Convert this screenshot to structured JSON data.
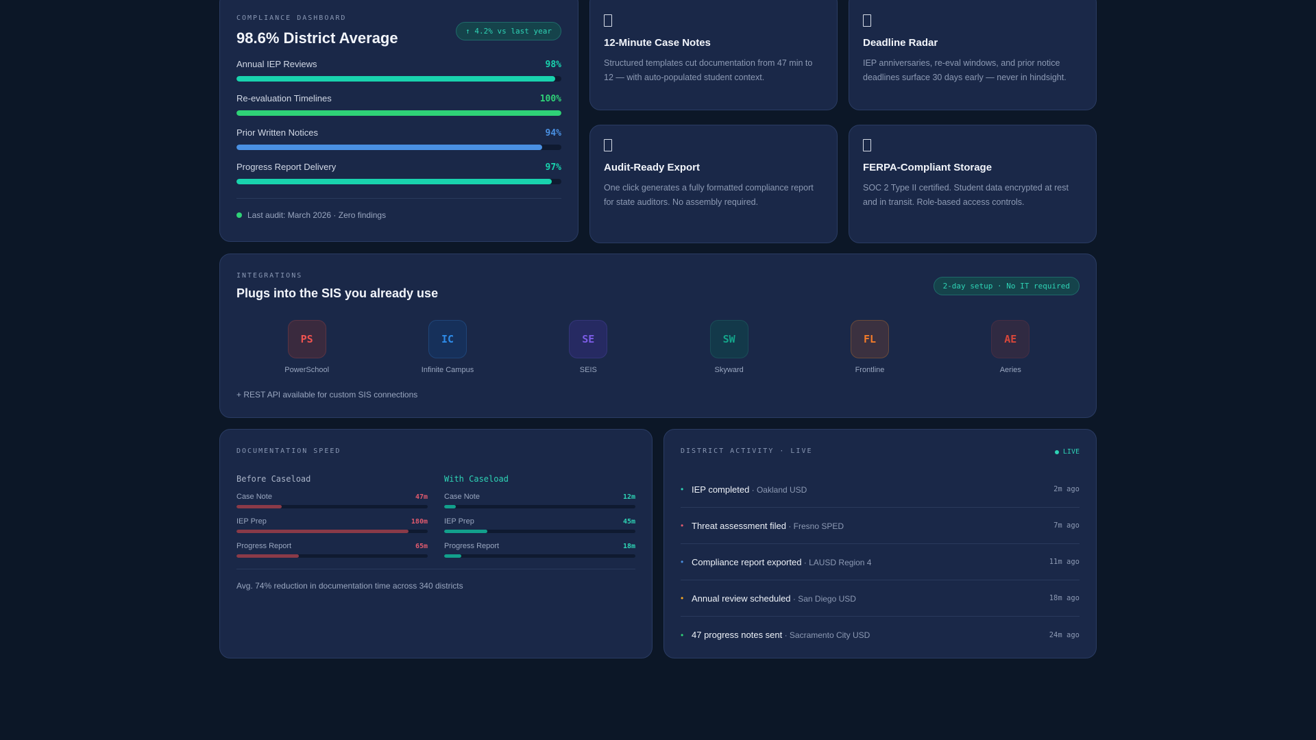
{
  "compliance": {
    "eyebrow": "COMPLIANCE DASHBOARD",
    "title": "98.6% District Average",
    "badge": "↑ 4.2% vs last year",
    "metrics": [
      {
        "label": "Annual IEP Reviews",
        "value": "98%",
        "percent": 98,
        "color": "#19d3ae"
      },
      {
        "label": "Re-evaluation Timelines",
        "value": "100%",
        "percent": 100,
        "color": "#2fd277"
      },
      {
        "label": "Prior Written Notices",
        "value": "94%",
        "percent": 94,
        "color": "#4a90e2"
      },
      {
        "label": "Progress Report Delivery",
        "value": "97%",
        "percent": 97,
        "color": "#19d3ae"
      }
    ],
    "audit": "Last audit: March 2026 · Zero findings"
  },
  "features": [
    {
      "icon": "document-icon",
      "title": "12-Minute Case Notes",
      "desc": "Structured templates cut documentation from 47 min to 12 — with auto-populated student context."
    },
    {
      "icon": "radar-icon",
      "title": "Deadline Radar",
      "desc": "IEP anniversaries, re-eval windows, and prior notice deadlines surface 30 days early — never in hindsight."
    },
    {
      "icon": "export-icon",
      "title": "Audit-Ready Export",
      "desc": "One click generates a fully formatted compliance report for state auditors. No assembly required."
    },
    {
      "icon": "lock-icon",
      "title": "FERPA-Compliant Storage",
      "desc": "SOC 2 Type II certified. Student data encrypted at rest and in transit. Role-based access controls."
    }
  ],
  "integrations": {
    "eyebrow": "INTEGRATIONS",
    "title": "Plugs into the SIS you already use",
    "badge": "2-day setup · No IT required",
    "logos": [
      {
        "abbr": "PS",
        "name": "PowerSchool",
        "color": "#ef5350",
        "bg": "#3a2a3e",
        "border": "#5a3444"
      },
      {
        "abbr": "IC",
        "name": "Infinite Campus",
        "color": "#2e8be8",
        "bg": "#16305a",
        "border": "#1f4578"
      },
      {
        "abbr": "SE",
        "name": "SEIS",
        "color": "#7c5ce6",
        "bg": "#262a62",
        "border": "#34357a"
      },
      {
        "abbr": "SW",
        "name": "Skyward",
        "color": "#14a58b",
        "bg": "#13394a",
        "border": "#1a4d58"
      },
      {
        "abbr": "FL",
        "name": "Frontline",
        "color": "#f57c2a",
        "bg": "#3b3140",
        "border": "#6a4a3a"
      },
      {
        "abbr": "AE",
        "name": "Aeries",
        "color": "#d9473a",
        "bg": "#302a42",
        "border": "#452e44"
      }
    ],
    "note": "+ REST API available for custom SIS connections"
  },
  "speed": {
    "eyebrow": "DOCUMENTATION SPEED",
    "before": {
      "heading": "Before Caseload",
      "color": "#e05a6e",
      "bar_color": "#8a3a48",
      "rows": [
        {
          "label": "Case Note",
          "value": "47m",
          "minutes": 47
        },
        {
          "label": "IEP Prep",
          "value": "180m",
          "minutes": 180
        },
        {
          "label": "Progress Report",
          "value": "65m",
          "minutes": 65
        }
      ]
    },
    "after": {
      "heading": "With Caseload",
      "color": "#2ed3b5",
      "bar_color": "#12a08c",
      "rows": [
        {
          "label": "Case Note",
          "value": "12m",
          "minutes": 12
        },
        {
          "label": "IEP Prep",
          "value": "45m",
          "minutes": 45
        },
        {
          "label": "Progress Report",
          "value": "18m",
          "minutes": 18
        }
      ]
    },
    "scale_max_minutes": 200,
    "note": "Avg. 74% reduction in documentation time across 340 districts"
  },
  "activity": {
    "eyebrow": "DISTRICT ACTIVITY · LIVE",
    "live": "LIVE",
    "items": [
      {
        "event": "IEP completed",
        "place": " · Oakland USD",
        "time": "2m ago",
        "color": "#2ed3b5"
      },
      {
        "event": "Threat assessment filed",
        "place": " · Fresno SPED",
        "time": "7m ago",
        "color": "#e05a6e"
      },
      {
        "event": "Compliance report exported",
        "place": " · LAUSD Region 4",
        "time": "11m ago",
        "color": "#4a90e2"
      },
      {
        "event": "Annual review scheduled",
        "place": " · San Diego USD",
        "time": "18m ago",
        "color": "#f5a623"
      },
      {
        "event": "47 progress notes sent",
        "place": " · Sacramento City USD",
        "time": "24m ago",
        "color": "#2fd277"
      }
    ]
  }
}
